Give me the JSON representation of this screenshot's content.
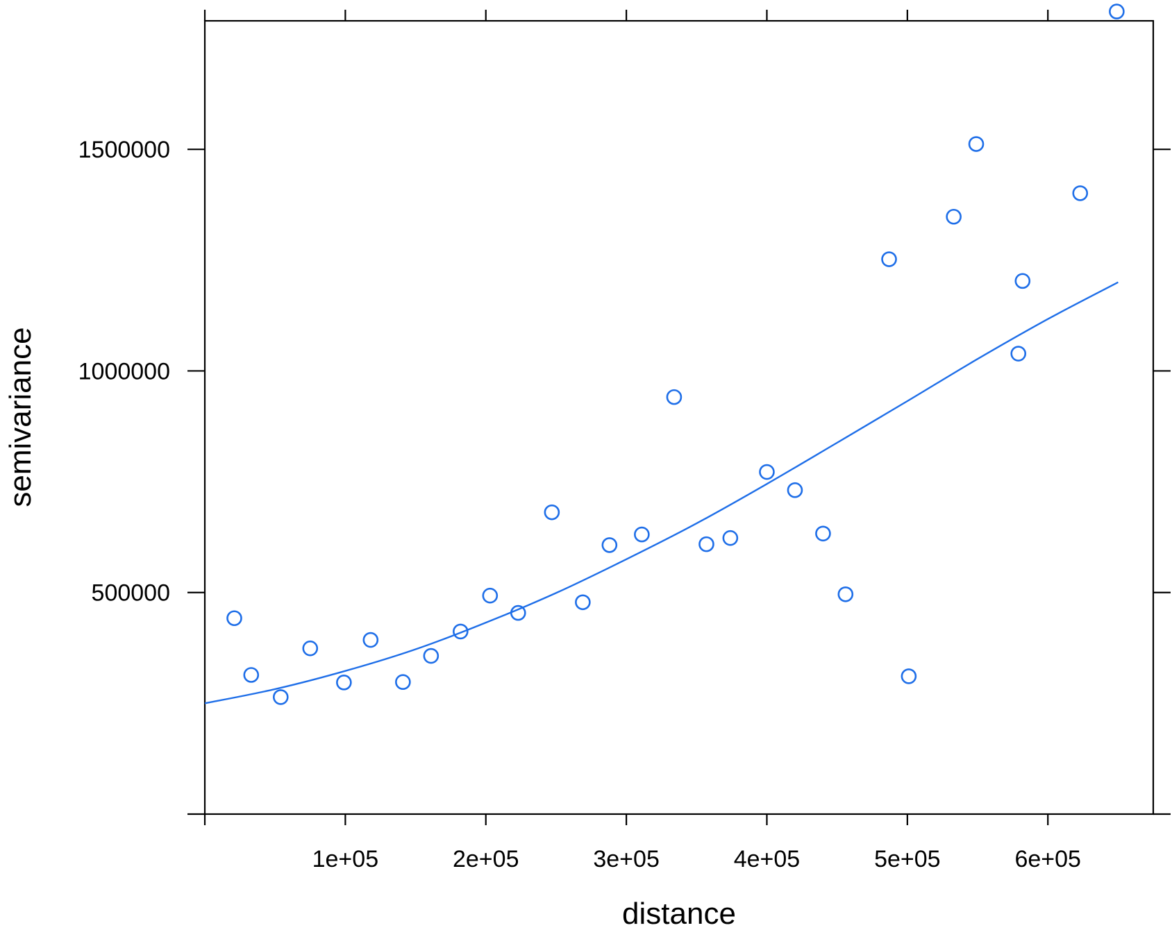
{
  "chart_data": {
    "type": "scatter",
    "xlabel": "distance",
    "ylabel": "semivariance",
    "xlim": [
      0,
      675000
    ],
    "ylim": [
      0,
      1790000
    ],
    "x_ticks": [
      100000,
      200000,
      300000,
      400000,
      500000,
      600000
    ],
    "x_tick_labels": [
      "1e+05",
      "2e+05",
      "3e+05",
      "4e+05",
      "5e+05",
      "6e+05"
    ],
    "y_ticks": [
      0,
      500000,
      1000000,
      1500000
    ],
    "y_tick_labels": [
      "",
      "500000",
      "1000000",
      "1500000"
    ],
    "grid": false,
    "legend": "none",
    "colors": {
      "points": "#1e6ee8",
      "line": "#1e6ee8",
      "axis": "#000000"
    },
    "series": [
      {
        "kind": "points",
        "x": [
          21000,
          33000,
          54000,
          75000,
          99000,
          118000,
          141000,
          161000,
          182000,
          203000,
          223000,
          247000,
          269000,
          288000,
          311000,
          334000,
          357000,
          374000,
          400000,
          420000,
          440000,
          456000,
          487000,
          501000,
          533000,
          549000,
          579000,
          582000,
          623000,
          649000
        ],
        "y": [
          442000,
          314000,
          264000,
          374000,
          297000,
          393000,
          298000,
          357000,
          412000,
          493000,
          454000,
          681000,
          478000,
          607000,
          631000,
          941000,
          609000,
          623000,
          772000,
          731000,
          633000,
          496000,
          1252000,
          311000,
          1348000,
          1512000,
          1039000,
          1203000,
          1401000,
          1811000
        ]
      },
      {
        "kind": "fitted-curve",
        "x": [
          0,
          50000,
          100000,
          150000,
          200000,
          250000,
          300000,
          350000,
          400000,
          450000,
          500000,
          550000,
          600000,
          650000
        ],
        "y": [
          250000,
          282000,
          323000,
          372000,
          432000,
          499000,
          575000,
          656000,
          745000,
          838000,
          932000,
          1027000,
          1117000,
          1200000
        ]
      }
    ]
  }
}
